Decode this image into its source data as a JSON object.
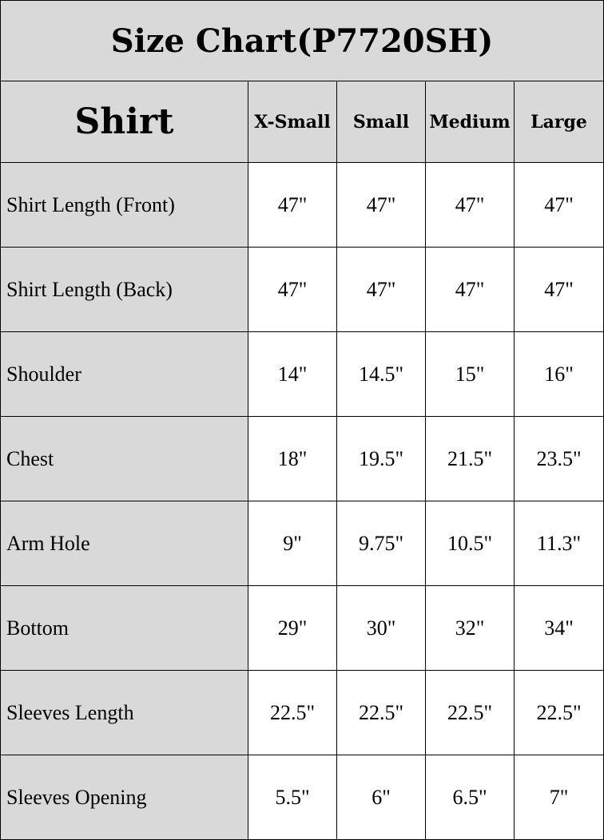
{
  "title": "Size Chart(P7720SH)",
  "header": {
    "section": "Shirt",
    "sizes": [
      "X-Small",
      "Small",
      "Medium",
      "Large"
    ]
  },
  "rows": [
    {
      "label": "Shirt Length (Front)",
      "values": [
        "47\"",
        "47\"",
        "47\"",
        "47\""
      ]
    },
    {
      "label": "Shirt Length (Back)",
      "values": [
        "47\"",
        "47\"",
        "47\"",
        "47\""
      ]
    },
    {
      "label": "Shoulder",
      "values": [
        "14\"",
        "14.5\"",
        "15\"",
        "16\""
      ]
    },
    {
      "label": "Chest",
      "values": [
        "18\"",
        "19.5\"",
        "21.5\"",
        "23.5\""
      ]
    },
    {
      "label": "Arm Hole",
      "values": [
        "9\"",
        "9.75\"",
        "10.5\"",
        "11.3\""
      ]
    },
    {
      "label": "Bottom",
      "values": [
        "29\"",
        "30\"",
        "32\"",
        "34\""
      ]
    },
    {
      "label": "Sleeves Length",
      "values": [
        "22.5\"",
        "22.5\"",
        "22.5\"",
        "22.5\""
      ]
    },
    {
      "label": "Sleeves Opening",
      "values": [
        "5.5\"",
        "6\"",
        "6.5\"",
        "7\""
      ]
    }
  ],
  "colors": {
    "header_bg": "#d9d9d9",
    "border": "#000000"
  }
}
